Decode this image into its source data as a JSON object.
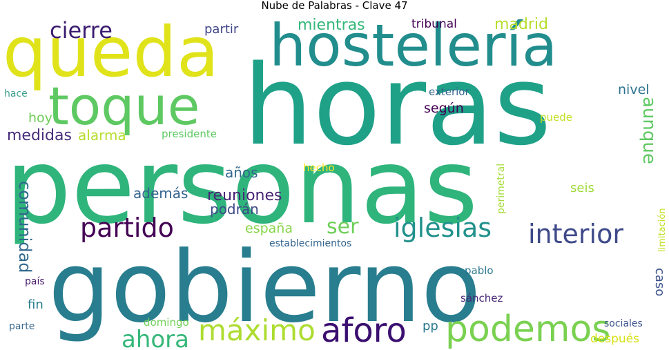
{
  "title": "Nube de Palabras - Clave 47",
  "words": [
    {
      "text": "personas",
      "color": "#2fb47c"
    },
    {
      "text": "gobierno",
      "color": "#287d8e"
    },
    {
      "text": "horas",
      "color": "#1fa188"
    },
    {
      "text": "hostelería",
      "color": "#228d8d"
    },
    {
      "text": "queda",
      "color": "#e0e31a"
    },
    {
      "text": "toque",
      "color": "#5ec962"
    },
    {
      "text": "podemos",
      "color": "#7ad151"
    },
    {
      "text": "máximo",
      "color": "#addc30"
    },
    {
      "text": "aforo",
      "color": "#3b0f70"
    },
    {
      "text": "iglesias",
      "color": "#21918c"
    },
    {
      "text": "interior",
      "color": "#3e4a89"
    },
    {
      "text": "partido",
      "color": "#440154"
    },
    {
      "text": "ahora",
      "color": "#35b779"
    },
    {
      "text": "cierre",
      "color": "#3b1c70"
    },
    {
      "text": "ser",
      "color": "#6ece58"
    },
    {
      "text": "comunidad",
      "color": "#31688e"
    },
    {
      "text": "aunque",
      "color": "#5ec962"
    },
    {
      "text": "reuniones",
      "color": "#482475"
    },
    {
      "text": "mientras",
      "color": "#35b779"
    },
    {
      "text": "madrid",
      "color": "#b5de2b"
    },
    {
      "text": "medidas",
      "color": "#472d7b"
    },
    {
      "text": "alarma",
      "color": "#b5de2b"
    },
    {
      "text": "años",
      "color": "#31688e"
    },
    {
      "text": "además",
      "color": "#33638d"
    },
    {
      "text": "podrán",
      "color": "#3e4989"
    },
    {
      "text": "españa",
      "color": "#86d549"
    },
    {
      "text": "según",
      "color": "#440154"
    },
    {
      "text": "nivel",
      "color": "#2c728e"
    },
    {
      "text": "hoy",
      "color": "#6ece58"
    },
    {
      "text": "partir",
      "color": "#404688"
    },
    {
      "text": "tribunal",
      "color": "#440154"
    },
    {
      "text": "seis",
      "color": "#9fda3a"
    },
    {
      "text": "fin",
      "color": "#287c8e"
    },
    {
      "text": "caso",
      "color": "#3b528b"
    },
    {
      "text": "pp",
      "color": "#2a788e"
    },
    {
      "text": "después",
      "color": "#d8e219"
    },
    {
      "text": "exterior",
      "color": "#32648e"
    },
    {
      "text": "puede",
      "color": "#c2df23"
    },
    {
      "text": "presidente",
      "color": "#5ec962"
    },
    {
      "text": "hecho",
      "color": "#fde725"
    },
    {
      "text": "establecimientos",
      "color": "#33638d"
    },
    {
      "text": "perimetral",
      "color": "#a5db36"
    },
    {
      "text": "limitación",
      "color": "#c2df23"
    },
    {
      "text": "pablo",
      "color": "#2a778e"
    },
    {
      "text": "sánchez",
      "color": "#482878"
    },
    {
      "text": "domingo",
      "color": "#6ece58"
    },
    {
      "text": "sociales",
      "color": "#3b528b"
    },
    {
      "text": "hace",
      "color": "#3b9f8e"
    },
    {
      "text": "país",
      "color": "#481b6d"
    },
    {
      "text": "parte",
      "color": "#3e6b8e"
    }
  ]
}
